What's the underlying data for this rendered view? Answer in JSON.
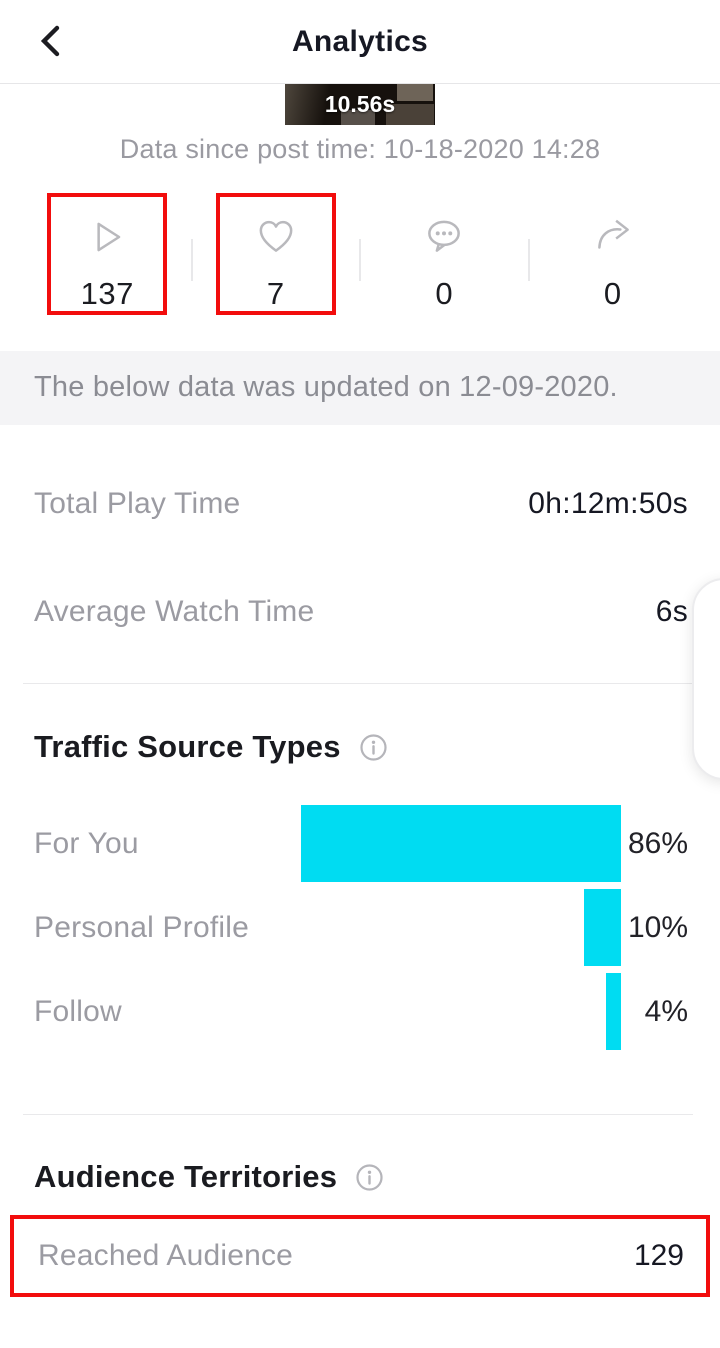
{
  "header": {
    "title": "Analytics"
  },
  "video": {
    "duration_overlay": "10.56s",
    "post_time_note": "Data since post time: 10-18-2020 14:28"
  },
  "stats": [
    {
      "name": "plays",
      "icon": "play-icon",
      "value": "137",
      "highlighted": true
    },
    {
      "name": "likes",
      "icon": "heart-icon",
      "value": "7",
      "highlighted": true
    },
    {
      "name": "comments",
      "icon": "comment-icon",
      "value": "0",
      "highlighted": false
    },
    {
      "name": "shares",
      "icon": "share-icon",
      "value": "0",
      "highlighted": false
    }
  ],
  "update_banner": "The below data was updated on 12-09-2020.",
  "metrics": [
    {
      "label": "Total Play Time",
      "value": "0h:12m:50s"
    },
    {
      "label": "Average Watch Time",
      "value": "6s"
    }
  ],
  "sections": {
    "traffic": {
      "title": "Traffic Source Types",
      "info_icon": "info-icon"
    },
    "audience": {
      "title": "Audience Territories",
      "info_icon": "info-icon"
    }
  },
  "chart_data": {
    "type": "bar",
    "orientation": "horizontal",
    "categories": [
      "For You",
      "Personal Profile",
      "Follow"
    ],
    "values": [
      86,
      10,
      4
    ],
    "value_labels": [
      "86%",
      "10%",
      "4%"
    ],
    "xlim": [
      0,
      100
    ],
    "bar_color": "#00dcf2",
    "bars_right_aligned": true,
    "grid": false,
    "legend": false
  },
  "audience_row": {
    "label": "Reached Audience",
    "value": "129",
    "highlighted": true
  },
  "colors": {
    "accent_cyan": "#00dcf2",
    "annotation_red": "#f20d0d",
    "text_dark": "#161823",
    "text_gray": "#9b9ba2",
    "banner_bg": "#f4f4f6"
  }
}
